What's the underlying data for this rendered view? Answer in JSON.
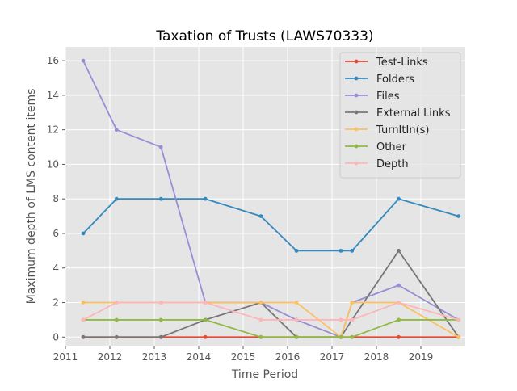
{
  "chart_data": {
    "type": "line",
    "title": "Taxation of Trusts (LAWS70333)",
    "xlabel": "Time Period",
    "ylabel": "Maximum depth of LMS content items",
    "xlim": [
      2011.0,
      2020.0
    ],
    "ylim": [
      -0.5,
      16.8
    ],
    "x_ticks": [
      2011,
      2012,
      2013,
      2014,
      2015,
      2016,
      2017,
      2018,
      2019
    ],
    "x_tick_labels": [
      "2011",
      "2012",
      "2013",
      "2014",
      "2015",
      "2016",
      "2017",
      "2018",
      "2019"
    ],
    "y_ticks": [
      0,
      2,
      4,
      6,
      8,
      10,
      12,
      14,
      16
    ],
    "y_tick_labels": [
      "0",
      "2",
      "4",
      "6",
      "8",
      "10",
      "12",
      "14",
      "16"
    ],
    "grid": true,
    "legend_position": "upper right",
    "x": [
      2011.4,
      2012.15,
      2013.15,
      2014.15,
      2015.4,
      2016.2,
      2017.2,
      2017.45,
      2018.5,
      2019.85
    ],
    "series": [
      {
        "name": "Test-Links",
        "color": "#E24A33",
        "values": [
          0,
          0,
          0,
          0,
          0,
          0,
          0,
          0,
          0,
          0
        ]
      },
      {
        "name": "Folders",
        "color": "#348ABD",
        "values": [
          6,
          8,
          8,
          8,
          7,
          5,
          5,
          5,
          8,
          7
        ]
      },
      {
        "name": "Files",
        "color": "#988ED5",
        "values": [
          16,
          12,
          11,
          2,
          2,
          1,
          0,
          2,
          3,
          1
        ]
      },
      {
        "name": "External Links",
        "color": "#777777",
        "values": [
          0,
          0,
          0,
          1,
          2,
          0,
          0,
          1,
          5,
          0
        ]
      },
      {
        "name": "TurnItIn(s)",
        "color": "#FBC15E",
        "values": [
          2,
          2,
          2,
          2,
          2,
          2,
          0,
          2,
          2,
          0
        ]
      },
      {
        "name": "Other",
        "color": "#8EBA42",
        "values": [
          1,
          1,
          1,
          1,
          0,
          0,
          0,
          0,
          1,
          1
        ]
      },
      {
        "name": "Depth",
        "color": "#FFB5B8",
        "values": [
          1,
          2,
          2,
          2,
          1,
          1,
          1,
          1,
          2,
          1
        ]
      }
    ]
  }
}
